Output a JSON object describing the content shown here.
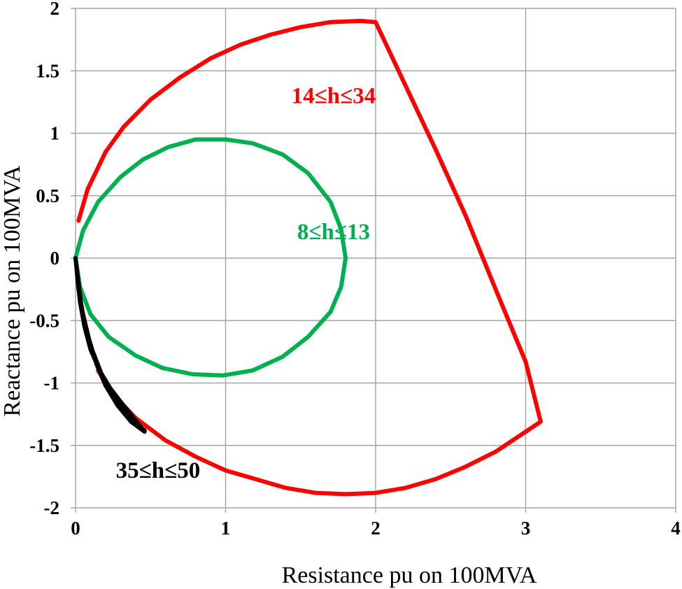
{
  "chart_data": {
    "type": "line",
    "title": "",
    "xlabel": "Resistance pu on 100MVA",
    "ylabel": "Reactance pu on 100MVA",
    "xlim": [
      0,
      4
    ],
    "ylim": [
      -2,
      2
    ],
    "x_ticks": [
      "0",
      "1",
      "2",
      "3",
      "4"
    ],
    "y_ticks": [
      "2",
      "1.5",
      "1",
      "0.5",
      "0",
      "-0.5",
      "-1",
      "-1.5",
      "-2"
    ],
    "x_tick_values": [
      0,
      1,
      2,
      3,
      4
    ],
    "y_tick_values": [
      2,
      1.5,
      1,
      0.5,
      0,
      -0.5,
      -1,
      -1.5,
      -2
    ],
    "grid": true,
    "legend": "none",
    "series": [
      {
        "label": "14≤h≤34",
        "color": "#ff0000",
        "points": [
          [
            0.02,
            0.3
          ],
          [
            0.08,
            0.55
          ],
          [
            0.2,
            0.85
          ],
          [
            0.32,
            1.05
          ],
          [
            0.5,
            1.27
          ],
          [
            0.7,
            1.45
          ],
          [
            0.9,
            1.6
          ],
          [
            1.1,
            1.71
          ],
          [
            1.3,
            1.79
          ],
          [
            1.5,
            1.85
          ],
          [
            1.7,
            1.89
          ],
          [
            1.9,
            1.9
          ],
          [
            2.0,
            1.89
          ],
          [
            2.2,
            1.38
          ],
          [
            2.4,
            0.87
          ],
          [
            2.6,
            0.34
          ],
          [
            2.8,
            -0.25
          ],
          [
            3.0,
            -0.83
          ],
          [
            3.1,
            -1.31
          ],
          [
            2.95,
            -1.43
          ],
          [
            2.8,
            -1.55
          ],
          [
            2.6,
            -1.67
          ],
          [
            2.4,
            -1.77
          ],
          [
            2.2,
            -1.84
          ],
          [
            2.0,
            -1.88
          ],
          [
            1.8,
            -1.89
          ],
          [
            1.6,
            -1.88
          ],
          [
            1.4,
            -1.84
          ],
          [
            1.2,
            -1.77
          ],
          [
            1.0,
            -1.7
          ],
          [
            0.8,
            -1.59
          ],
          [
            0.6,
            -1.46
          ],
          [
            0.4,
            -1.28
          ],
          [
            0.25,
            -1.09
          ],
          [
            0.15,
            -0.9
          ]
        ]
      },
      {
        "label": "8≤h≤13",
        "color": "#00b050",
        "points": [
          [
            0.0,
            0.0
          ],
          [
            0.05,
            0.22
          ],
          [
            0.15,
            0.45
          ],
          [
            0.3,
            0.65
          ],
          [
            0.45,
            0.79
          ],
          [
            0.62,
            0.89
          ],
          [
            0.8,
            0.95
          ],
          [
            1.0,
            0.95
          ],
          [
            1.18,
            0.92
          ],
          [
            1.38,
            0.83
          ],
          [
            1.55,
            0.68
          ],
          [
            1.7,
            0.45
          ],
          [
            1.77,
            0.23
          ],
          [
            1.8,
            0.0
          ],
          [
            1.77,
            -0.23
          ],
          [
            1.7,
            -0.43
          ],
          [
            1.55,
            -0.63
          ],
          [
            1.38,
            -0.79
          ],
          [
            1.18,
            -0.9
          ],
          [
            0.98,
            -0.94
          ],
          [
            0.78,
            -0.93
          ],
          [
            0.58,
            -0.88
          ],
          [
            0.4,
            -0.78
          ],
          [
            0.22,
            -0.63
          ],
          [
            0.1,
            -0.45
          ],
          [
            0.03,
            -0.23
          ],
          [
            0.0,
            0.0
          ]
        ]
      },
      {
        "label": "35≤h≤50",
        "color": "#000000",
        "points": [
          [
            0.0,
            0.0
          ],
          [
            0.02,
            -0.25
          ],
          [
            0.05,
            -0.45
          ],
          [
            0.09,
            -0.65
          ],
          [
            0.14,
            -0.85
          ],
          [
            0.2,
            -1.02
          ],
          [
            0.28,
            -1.18
          ],
          [
            0.37,
            -1.31
          ],
          [
            0.46,
            -1.39
          ],
          [
            0.4,
            -1.3
          ],
          [
            0.32,
            -1.18
          ],
          [
            0.23,
            -1.04
          ],
          [
            0.16,
            -0.9
          ],
          [
            0.1,
            -0.73
          ],
          [
            0.06,
            -0.55
          ],
          [
            0.03,
            -0.35
          ],
          [
            0.0,
            0.0
          ],
          [
            0.04,
            -0.4
          ],
          [
            0.1,
            -0.7
          ],
          [
            0.18,
            -0.95
          ],
          [
            0.28,
            -1.15
          ],
          [
            0.4,
            -1.32
          ],
          [
            0.46,
            -1.38
          ]
        ]
      }
    ],
    "annotations": [
      {
        "text": "14≤h≤34",
        "color": "#ff0000",
        "x": 1.72,
        "y": 1.24
      },
      {
        "text": "8≤h≤13",
        "color": "#00b050",
        "x": 1.72,
        "y": 0.15
      },
      {
        "text": "35≤h≤50",
        "color": "#000000",
        "x": 0.55,
        "y": -1.76
      }
    ]
  }
}
